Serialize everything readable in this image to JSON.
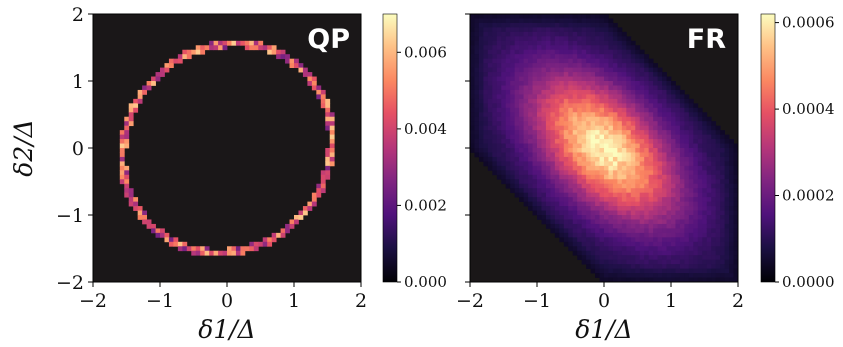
{
  "chart_data": [
    {
      "type": "heatmap",
      "panel_label": "QP",
      "xlabel": "δ1/Δ",
      "ylabel": "δ2/Δ",
      "xlim": [
        -2,
        2
      ],
      "ylim": [
        -2,
        2
      ],
      "x_ticks": [
        "−2",
        "−1",
        "0",
        "1",
        "2"
      ],
      "y_ticks": [
        "2",
        "1",
        "0",
        "−1",
        "−2"
      ],
      "distribution": "thin elliptical ring, semi-axes approx 1.5 along the anti-diagonal (−1,1) direction and 1.6 along the diagonal (1,1) direction, centered at (0,0); zero elsewhere",
      "colorbar": {
        "colormap": "magma",
        "range": [
          0,
          0.007
        ],
        "ticks": [
          "0.000",
          "0.002",
          "0.004",
          "0.006"
        ]
      }
    },
    {
      "type": "heatmap",
      "panel_label": "FR",
      "xlabel": "δ1/Δ",
      "ylabel": "",
      "xlim": [
        -2,
        2
      ],
      "ylim": [
        -2,
        2
      ],
      "x_ticks": [
        "−2",
        "−1",
        "0",
        "1",
        "2"
      ],
      "distribution": "broad peak centered at (0,0), elongated along the anti-diagonal, bounded by a hexagon with vertices approx (−2,2), (−2,0), (0,−2), (2,−2), (2,0), (0,2)",
      "colorbar": {
        "colormap": "magma",
        "range": [
          0,
          0.00062
        ],
        "ticks": [
          "0.0000",
          "0.0002",
          "0.0004",
          "0.0006"
        ]
      }
    }
  ]
}
